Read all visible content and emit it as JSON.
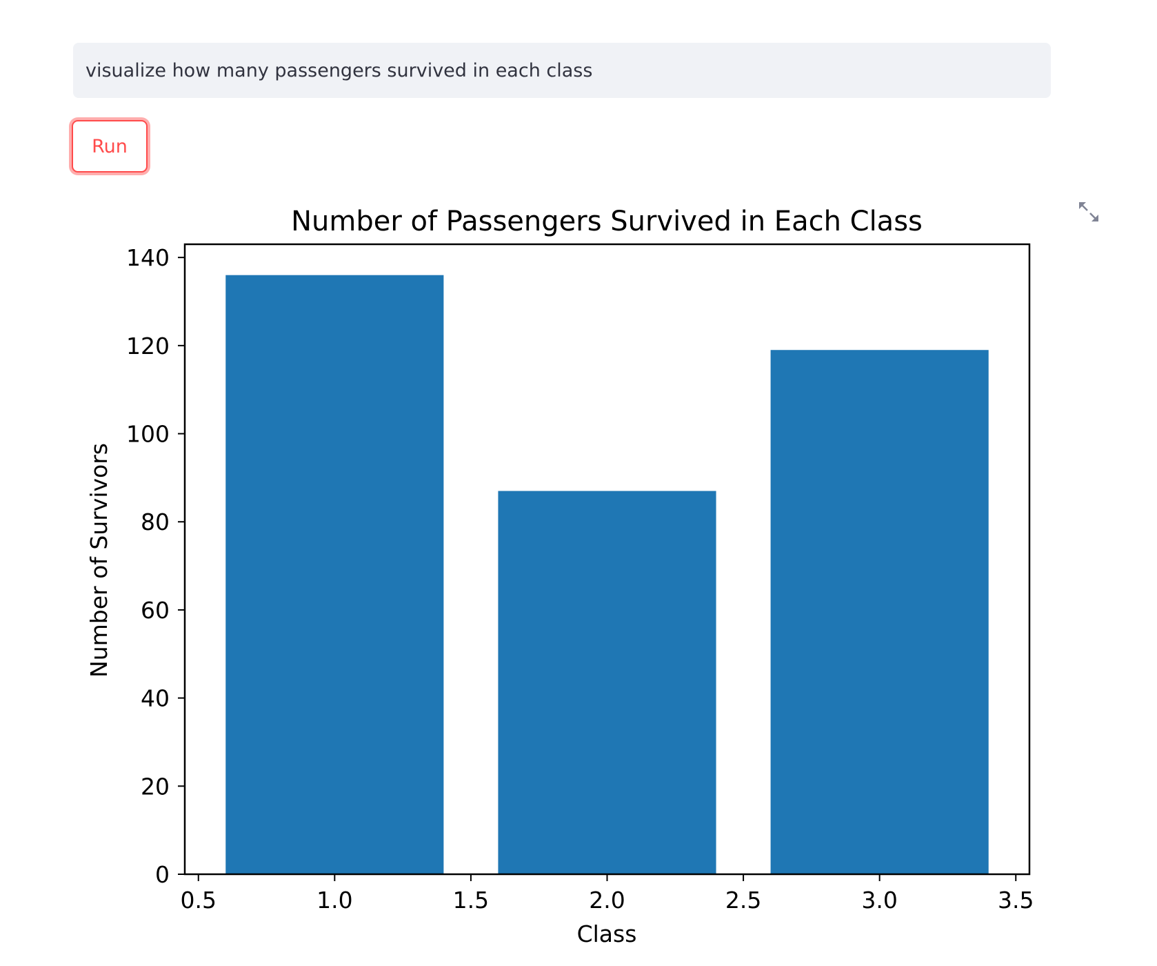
{
  "query": {
    "value": "visualize how many passengers survived in each class"
  },
  "run_button": {
    "label": "Run",
    "accent": "#ff4b4b"
  },
  "expand": {
    "icon": "expand-fullscreen-icon"
  },
  "chart_data": {
    "type": "bar",
    "title": "Number of Passengers Survived in Each Class",
    "xlabel": "Class",
    "ylabel": "Number of Survivors",
    "x": [
      1,
      2,
      3
    ],
    "values": [
      136,
      87,
      119
    ],
    "bar_width": 0.8,
    "xlim": [
      0.45,
      3.55
    ],
    "ylim": [
      0,
      143
    ],
    "xticks": [
      0.5,
      1.0,
      1.5,
      2.0,
      2.5,
      3.0,
      3.5
    ],
    "xtick_labels": [
      "0.5",
      "1.0",
      "1.5",
      "2.0",
      "2.5",
      "3.0",
      "3.5"
    ],
    "yticks": [
      0,
      20,
      40,
      60,
      80,
      100,
      120,
      140
    ],
    "ytick_labels": [
      "0",
      "20",
      "40",
      "60",
      "80",
      "100",
      "120",
      "140"
    ],
    "bar_color": "#1f77b4",
    "grid": false,
    "legend": "none"
  }
}
